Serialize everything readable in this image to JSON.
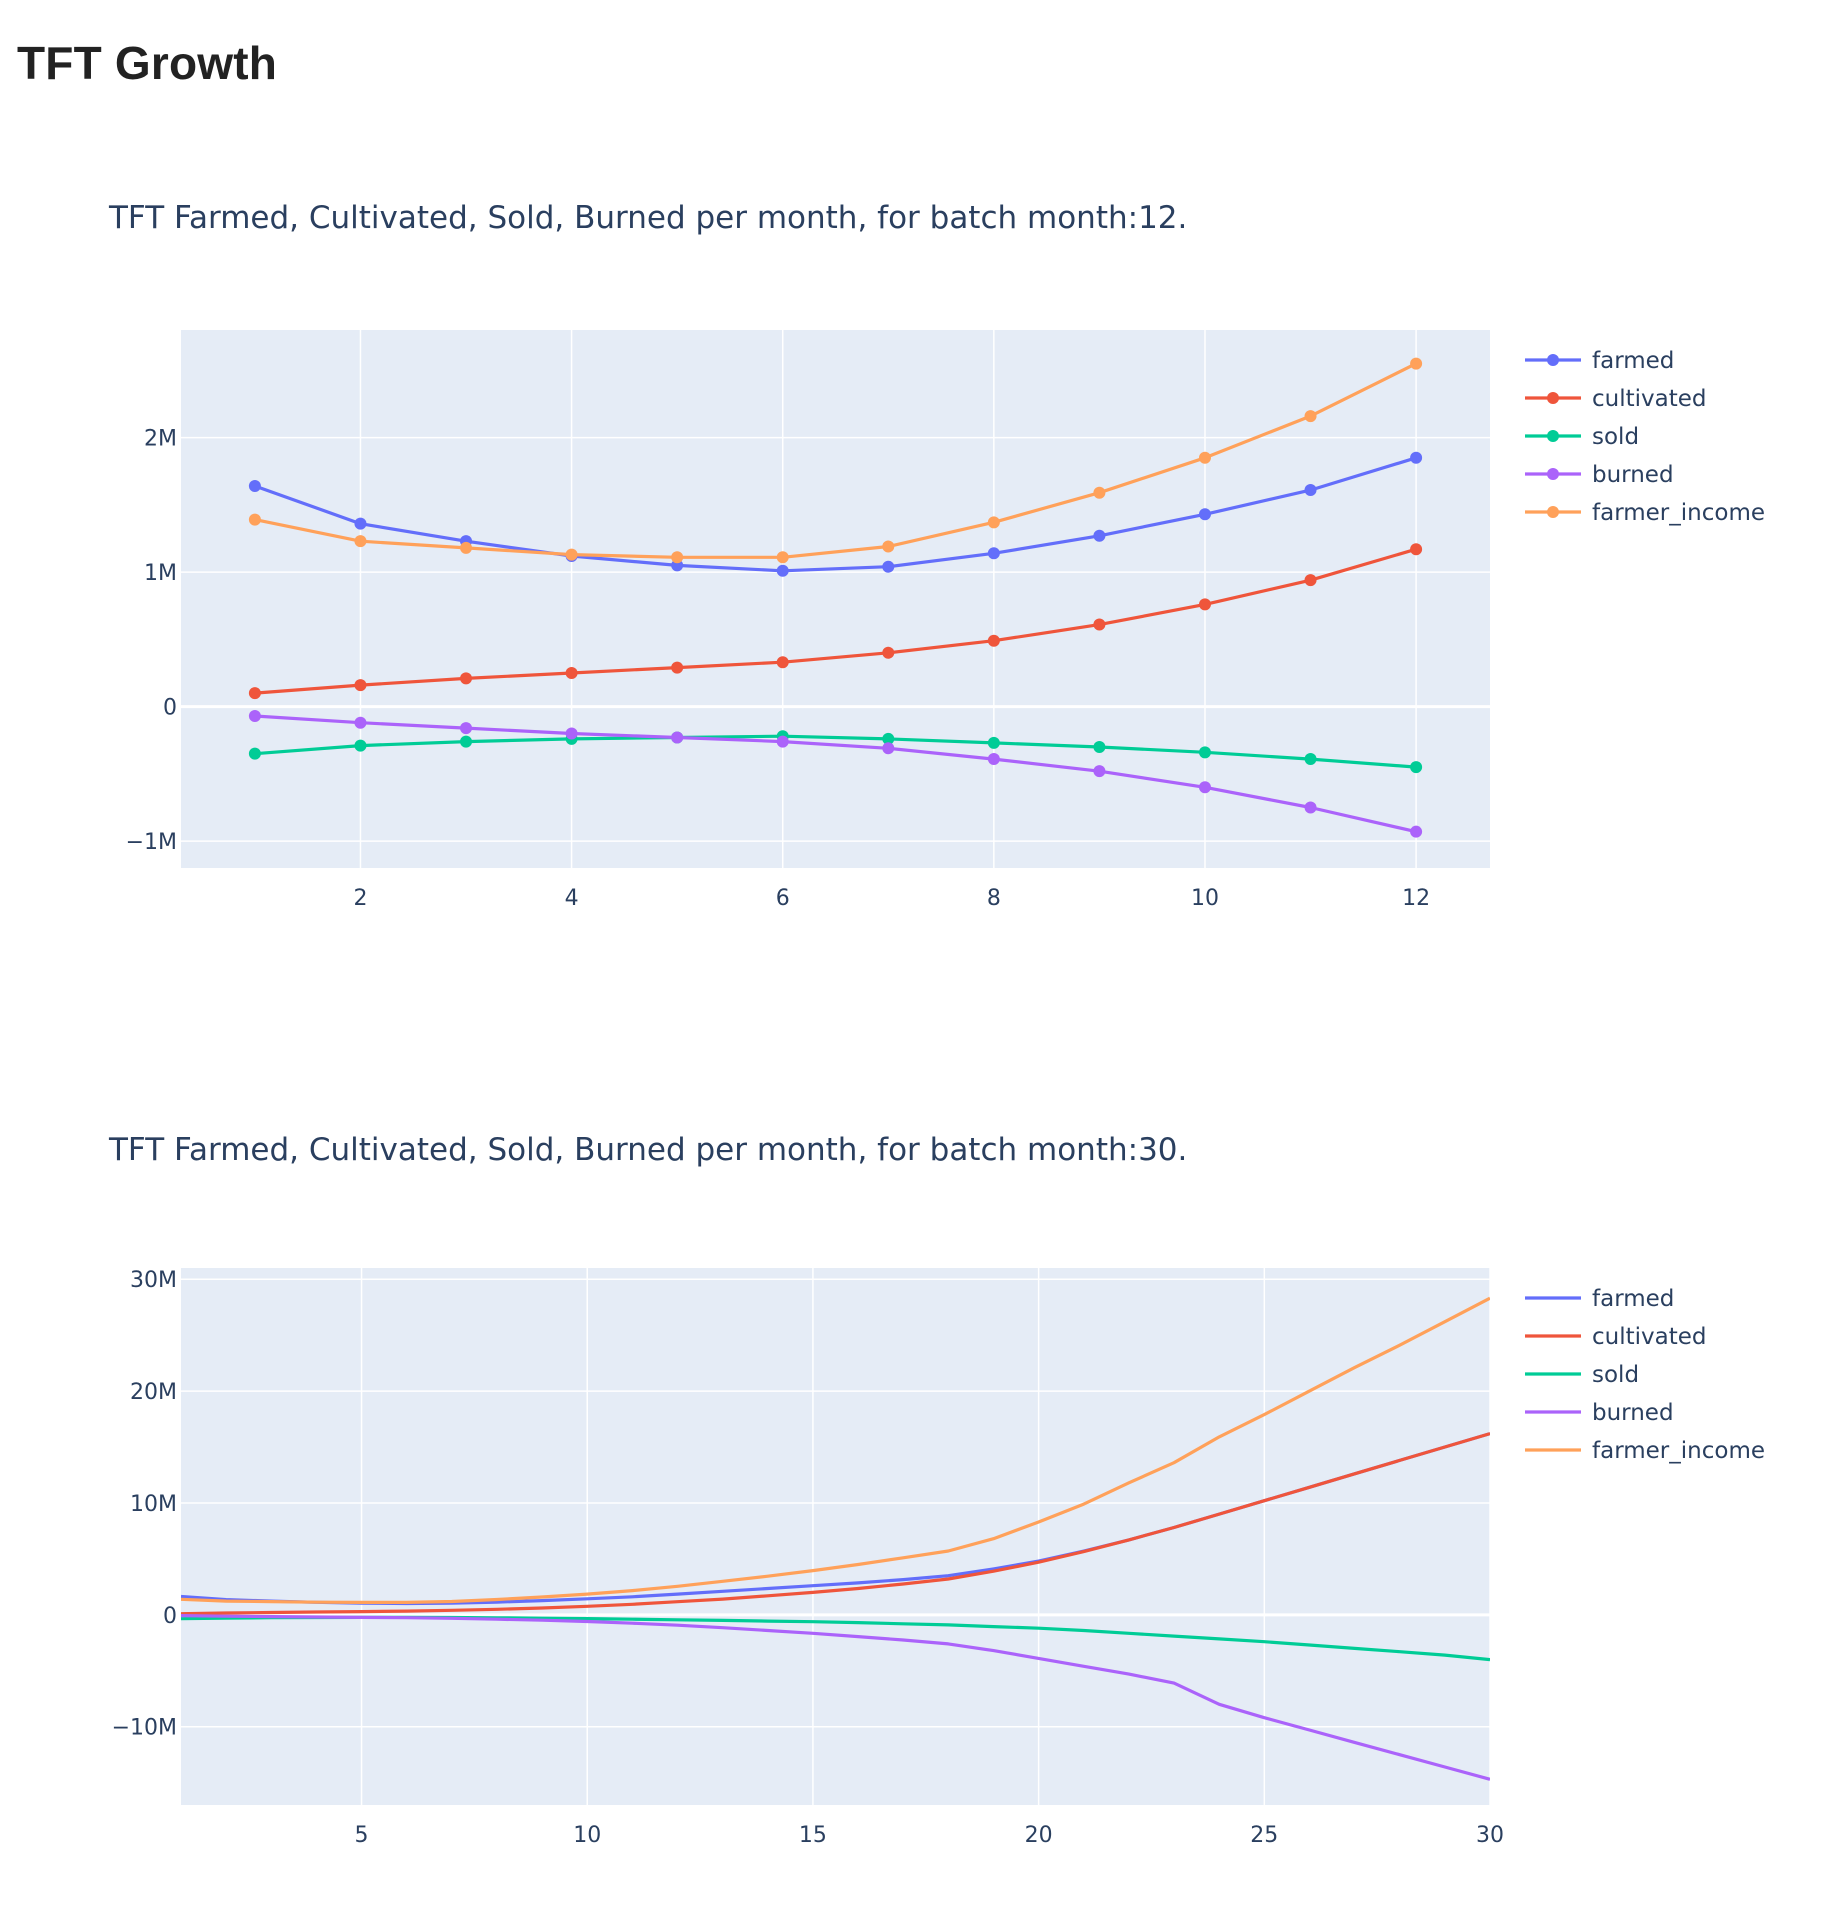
{
  "page": {
    "title": "TFT Growth"
  },
  "colors": {
    "farmed": "#636efa",
    "cultivated": "#ef553b",
    "sold": "#00cc96",
    "burned": "#ab63fa",
    "farmer_income": "#ffa15a",
    "plot_bg": "#e5ecf6",
    "grid": "#ffffff",
    "text": "#2a3f5f"
  },
  "chart_data": [
    {
      "type": "line",
      "markers": true,
      "title": "TFT Farmed, Cultivated, Sold, Burned per month, for batch month:12.",
      "xlabel": "",
      "ylabel": "",
      "x": [
        1,
        2,
        3,
        4,
        5,
        6,
        7,
        8,
        9,
        10,
        11,
        12
      ],
      "xlim": [
        0.3,
        12.7
      ],
      "ylim": [
        -1200000,
        2800000
      ],
      "xticks": [
        2,
        4,
        6,
        8,
        10,
        12
      ],
      "xtick_labels": [
        "2",
        "4",
        "6",
        "8",
        "10",
        "12"
      ],
      "yticks": [
        -1000000,
        0,
        1000000,
        2000000
      ],
      "ytick_labels": [
        "−1M",
        "0",
        "1M",
        "2M"
      ],
      "grid": true,
      "legend": "right",
      "series": [
        {
          "name": "farmed",
          "color": "#636efa",
          "values": [
            1640000,
            1360000,
            1230000,
            1120000,
            1050000,
            1010000,
            1040000,
            1140000,
            1270000,
            1430000,
            1610000,
            1850000
          ]
        },
        {
          "name": "cultivated",
          "color": "#ef553b",
          "values": [
            100000,
            160000,
            210000,
            250000,
            290000,
            330000,
            400000,
            490000,
            610000,
            760000,
            940000,
            1170000
          ]
        },
        {
          "name": "sold",
          "color": "#00cc96",
          "values": [
            -350000,
            -290000,
            -260000,
            -240000,
            -230000,
            -220000,
            -240000,
            -270000,
            -300000,
            -340000,
            -390000,
            -450000
          ]
        },
        {
          "name": "burned",
          "color": "#ab63fa",
          "values": [
            -70000,
            -120000,
            -160000,
            -200000,
            -230000,
            -260000,
            -310000,
            -390000,
            -480000,
            -600000,
            -750000,
            -930000
          ]
        },
        {
          "name": "farmer_income",
          "color": "#ffa15a",
          "values": [
            1390000,
            1230000,
            1180000,
            1130000,
            1110000,
            1110000,
            1190000,
            1370000,
            1590000,
            1850000,
            2160000,
            2550000
          ]
        }
      ]
    },
    {
      "type": "line",
      "markers": false,
      "title": "TFT Farmed, Cultivated, Sold, Burned per month, for batch month:30.",
      "xlabel": "",
      "ylabel": "",
      "x": [
        1,
        2,
        3,
        4,
        5,
        6,
        7,
        8,
        9,
        10,
        11,
        12,
        13,
        14,
        15,
        16,
        17,
        18,
        19,
        20,
        21,
        22,
        23,
        24,
        25,
        26,
        27,
        28,
        29,
        30
      ],
      "xlim": [
        1,
        30
      ],
      "ylim": [
        -17000000,
        31000000
      ],
      "xticks": [
        5,
        10,
        15,
        20,
        25,
        30
      ],
      "xtick_labels": [
        "5",
        "10",
        "15",
        "20",
        "25",
        "30"
      ],
      "yticks": [
        -10000000,
        0,
        10000000,
        20000000,
        30000000
      ],
      "ytick_labels": [
        "−10M",
        "0",
        "10M",
        "20M",
        "30M"
      ],
      "grid": true,
      "legend": "right",
      "series": [
        {
          "name": "farmed",
          "color": "#636efa",
          "values": [
            1640000,
            1360000,
            1230000,
            1120000,
            1050000,
            1010000,
            1040000,
            1140000,
            1270000,
            1430000,
            1610000,
            1850000,
            2100000,
            2350000,
            2600000,
            2850000,
            3150000,
            3500000,
            4100000,
            4800000,
            5700000,
            6700000,
            7800000,
            9000000,
            10200000,
            11400000,
            12600000,
            13800000,
            15000000,
            16200000
          ]
        },
        {
          "name": "cultivated",
          "color": "#ef553b",
          "values": [
            100000,
            160000,
            210000,
            250000,
            290000,
            330000,
            400000,
            490000,
            610000,
            760000,
            940000,
            1170000,
            1400000,
            1700000,
            2000000,
            2350000,
            2750000,
            3200000,
            3900000,
            4700000,
            5650000,
            6700000,
            7800000,
            9000000,
            10200000,
            11400000,
            12600000,
            13800000,
            15000000,
            16200000
          ]
        },
        {
          "name": "sold",
          "color": "#00cc96",
          "values": [
            -350000,
            -290000,
            -260000,
            -240000,
            -230000,
            -220000,
            -240000,
            -270000,
            -300000,
            -340000,
            -390000,
            -450000,
            -500000,
            -560000,
            -620000,
            -700000,
            -800000,
            -900000,
            -1050000,
            -1200000,
            -1400000,
            -1650000,
            -1900000,
            -2150000,
            -2400000,
            -2700000,
            -3000000,
            -3300000,
            -3600000,
            -4000000
          ]
        },
        {
          "name": "burned",
          "color": "#ab63fa",
          "values": [
            -70000,
            -120000,
            -160000,
            -200000,
            -230000,
            -260000,
            -310000,
            -390000,
            -480000,
            -600000,
            -750000,
            -930000,
            -1150000,
            -1400000,
            -1650000,
            -1950000,
            -2250000,
            -2600000,
            -3200000,
            -3900000,
            -4600000,
            -5300000,
            -6100000,
            -8000000,
            -9200000,
            -10300000,
            -11400000,
            -12500000,
            -13600000,
            -14700000
          ]
        },
        {
          "name": "farmer_income",
          "color": "#ffa15a",
          "values": [
            1390000,
            1230000,
            1180000,
            1130000,
            1110000,
            1110000,
            1190000,
            1370000,
            1590000,
            1850000,
            2160000,
            2550000,
            3000000,
            3450000,
            3950000,
            4500000,
            5100000,
            5700000,
            6800000,
            8300000,
            9900000,
            11800000,
            13600000,
            15900000,
            17900000,
            20000000,
            22100000,
            24100000,
            26200000,
            28300000
          ]
        }
      ]
    }
  ]
}
